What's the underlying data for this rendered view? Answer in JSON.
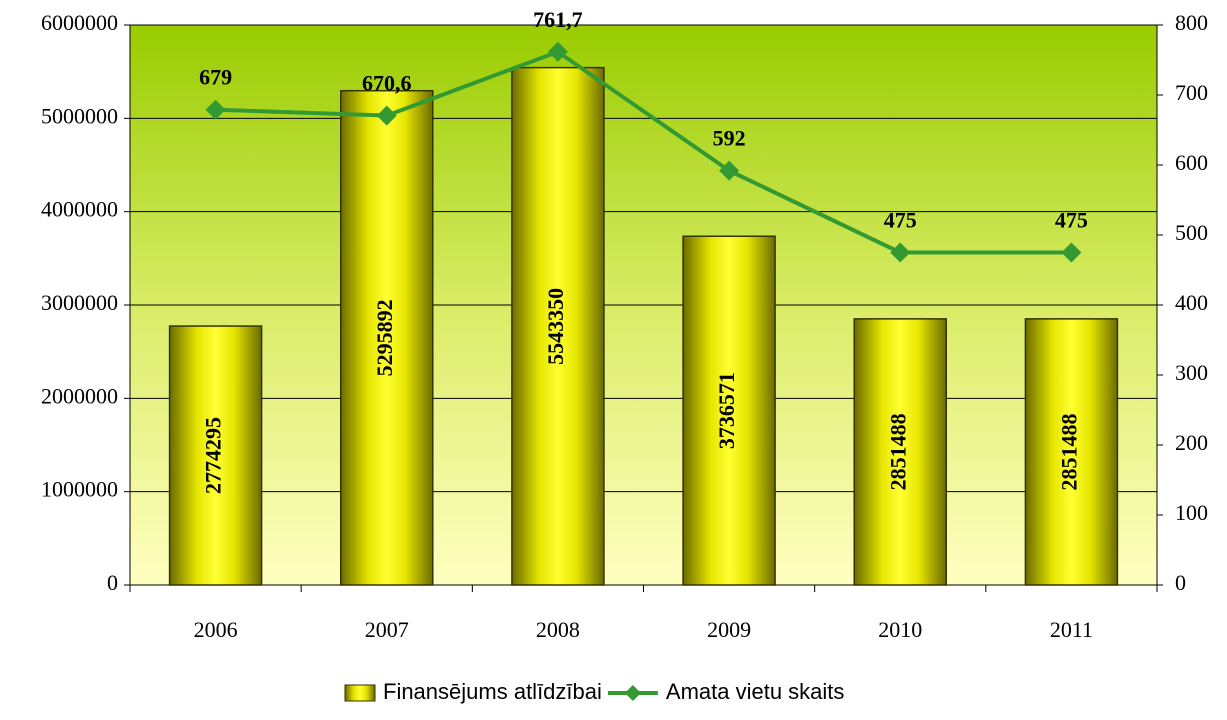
{
  "chart_data": {
    "type": "bar",
    "categories": [
      "2006",
      "2007",
      "2008",
      "2009",
      "2010",
      "2011"
    ],
    "series": [
      {
        "name": "Finansējums atlīdzībai",
        "type": "bar",
        "color": "#ffff00",
        "values": [
          2774295,
          5295892,
          5543350,
          3736571,
          2851488,
          2851488
        ]
      },
      {
        "name": "Amata vietu skaits",
        "type": "line",
        "axis": "y2",
        "color": "#339933",
        "values": [
          679,
          670.6,
          761.7,
          592,
          475,
          475
        ],
        "value_labels": [
          "679",
          "670,6",
          "761,7",
          "592",
          "475",
          "475"
        ]
      }
    ],
    "ylim": [
      0,
      6000000
    ],
    "yticks": [
      0,
      1000000,
      2000000,
      3000000,
      4000000,
      5000000,
      6000000
    ],
    "y2lim": [
      0,
      800
    ],
    "y2ticks": [
      0,
      100,
      200,
      300,
      400,
      500,
      600,
      700,
      800
    ],
    "grid": true,
    "legend": "bottom"
  }
}
